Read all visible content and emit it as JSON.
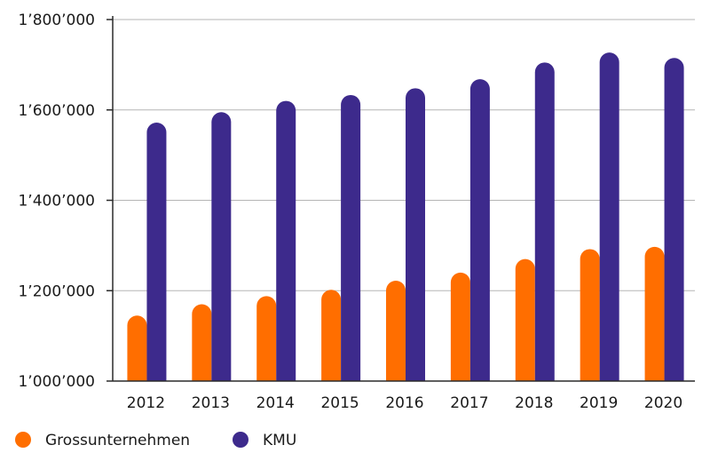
{
  "chart_data": {
    "type": "bar",
    "title": "",
    "xlabel": "",
    "ylabel": "",
    "categories": [
      "2012",
      "2013",
      "2014",
      "2015",
      "2016",
      "2017",
      "2018",
      "2019",
      "2020"
    ],
    "series": [
      {
        "name": "Grossunternehmen",
        "color": "#ff6e00",
        "values": [
          1145000,
          1170000,
          1188000,
          1202000,
          1222000,
          1240000,
          1270000,
          1292000,
          1297000
        ]
      },
      {
        "name": "KMU",
        "color": "#3d2a8c",
        "values": [
          1572000,
          1595000,
          1620000,
          1633000,
          1648000,
          1668000,
          1705000,
          1727000,
          1715000
        ]
      }
    ],
    "ylim": [
      1000000,
      1800000
    ],
    "yticks": [
      {
        "value": 1000000,
        "label": "1’000’000"
      },
      {
        "value": 1200000,
        "label": "1’200’000"
      },
      {
        "value": 1400000,
        "label": "1’400’000"
      },
      {
        "value": 1600000,
        "label": "1’600’000"
      },
      {
        "value": 1800000,
        "label": "1’800’000"
      }
    ],
    "grid": true,
    "legend": "bottom-left"
  }
}
